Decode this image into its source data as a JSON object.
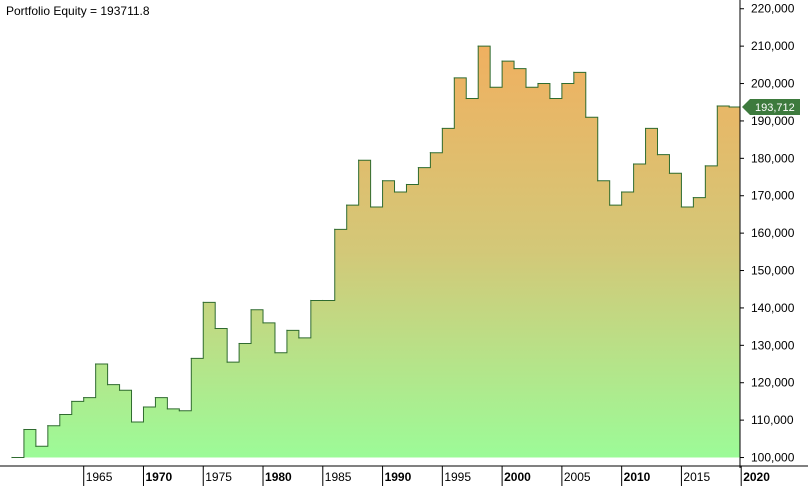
{
  "title_text": "Portfolio Equity = 193711.8",
  "last_value_label": "193,712",
  "colors": {
    "fill_top": "#f0b060",
    "fill_mid": "#d3c878",
    "fill_bottom": "#9cfb98",
    "line": "#2f6b2f",
    "badge": "#3d7a3d",
    "axis": "#000000"
  },
  "chart_data": {
    "type": "area",
    "title": "Portfolio Equity = 193711.8",
    "xlim": [
      1958.5,
      2019.9
    ],
    "ylim": [
      98000,
      221000
    ],
    "y_ticks": [
      100000,
      110000,
      120000,
      130000,
      140000,
      150000,
      160000,
      170000,
      180000,
      190000,
      200000,
      210000,
      220000
    ],
    "y_tick_labels": [
      "100,000",
      "110,000",
      "120,000",
      "130,000",
      "140,000",
      "150,000",
      "160,000",
      "170,000",
      "180,000",
      "190,000",
      "200,000",
      "210,000",
      "220,000"
    ],
    "x_ticks": [
      1965,
      1970,
      1975,
      1980,
      1985,
      1990,
      1995,
      2000,
      2005,
      2010,
      2015,
      2020
    ],
    "x_tick_labels": [
      "1965",
      "1970",
      "1975",
      "1980",
      "1985",
      "1990",
      "1995",
      "2000",
      "2005",
      "2010",
      "2015",
      "2020"
    ],
    "bold_ticks": [
      1970,
      1980,
      1990,
      2000,
      2010,
      2020
    ],
    "grid": false,
    "series": [
      {
        "x": [
          1959.0,
          1960.0,
          1961.0,
          1962.0,
          1963.0,
          1964.0,
          1965.0,
          1966.0,
          1967.0,
          1968.0,
          1969.0,
          1970.0,
          1971.0,
          1972.0,
          1973.0,
          1974.0,
          1975.0,
          1976.0,
          1977.0,
          1978.0,
          1979.0,
          1980.0,
          1981.0,
          1982.0,
          1983.0,
          1984.0,
          1985.0,
          1986.0,
          1987.0,
          1988.0,
          1989.0,
          1990.0,
          1991.0,
          1992.0,
          1993.0,
          1994.0,
          1995.0,
          1996.0,
          1997.0,
          1998.0,
          1999.0,
          2000.0,
          2001.0,
          2002.0,
          2003.0,
          2004.0,
          2005.0,
          2006.0,
          2007.0,
          2008.0,
          2009.0,
          2010.0,
          2011.0,
          2012.0,
          2013.0,
          2014.0,
          2015.0,
          2016.0,
          2017.0,
          2018.0,
          2019.0
        ],
        "y": [
          100000,
          107500,
          103000,
          108500,
          111500,
          115000,
          116000,
          125000,
          119500,
          118000,
          109500,
          113500,
          116000,
          113000,
          112500,
          126500,
          141500,
          134500,
          125500,
          130500,
          139500,
          136000,
          128000,
          134000,
          132000,
          142000,
          142000,
          161000,
          167500,
          179500,
          167000,
          174000,
          171000,
          173000,
          177500,
          181500,
          188000,
          201500,
          196000,
          210000,
          199000,
          206000,
          204000,
          199000,
          200000,
          196000,
          200000,
          203000,
          191000,
          174000,
          167500,
          171000,
          178500,
          188000,
          181000,
          176000,
          167000,
          169500,
          178000,
          194000,
          193712
        ]
      }
    ]
  }
}
